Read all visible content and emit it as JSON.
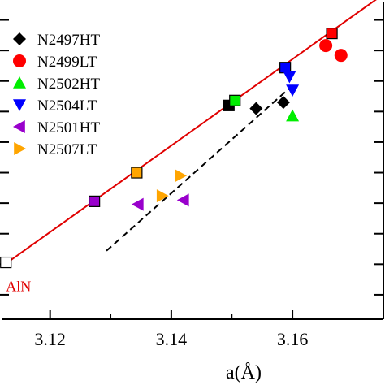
{
  "chart_data": {
    "type": "scatter",
    "xlabel": "a(Å)",
    "ylabel": "",
    "xlim": [
      3.112,
      3.175
    ],
    "ylim": [
      5.026,
      5.078
    ],
    "x_ticks": [
      3.12,
      3.14,
      3.16
    ],
    "x_tick_labels": [
      "3.12",
      "3.14",
      "3.16"
    ],
    "legend_position": "top-left",
    "legend": [
      {
        "label": "N2497HT",
        "marker": "diamond",
        "color": "#000000"
      },
      {
        "label": "N2499LT",
        "marker": "circle",
        "color": "#ff0000"
      },
      {
        "label": "N2502HT",
        "marker": "triangle-up",
        "color": "#00ee00"
      },
      {
        "label": "N2504LT",
        "marker": "triangle-down",
        "color": "#0000ff"
      },
      {
        "label": "N2501HT",
        "marker": "triangle-left",
        "color": "#9900cc"
      },
      {
        "label": "N2507LT",
        "marker": "triangle-right",
        "color": "#ffa500"
      }
    ],
    "series": [
      {
        "name": "N2497HT",
        "marker": "diamond",
        "color": "#000000",
        "points": [
          [
            3.154,
            5.0605
          ],
          [
            3.1585,
            5.0615
          ]
        ]
      },
      {
        "name": "N2499LT",
        "marker": "circle",
        "color": "#ff0000",
        "points": [
          [
            3.1655,
            5.0708
          ],
          [
            3.168,
            5.0692
          ]
        ]
      },
      {
        "name": "N2502HT",
        "marker": "triangle-up",
        "color": "#00ee00",
        "points": [
          [
            3.16,
            5.0593
          ]
        ]
      },
      {
        "name": "N2504LT",
        "marker": "triangle-down",
        "color": "#0000ff",
        "points": [
          [
            3.1595,
            5.0657
          ],
          [
            3.16,
            5.0635
          ]
        ]
      },
      {
        "name": "N2501HT",
        "marker": "triangle-left",
        "color": "#9900cc",
        "points": [
          [
            3.1345,
            5.0448
          ],
          [
            3.142,
            5.0455
          ]
        ]
      },
      {
        "name": "N2507LT",
        "marker": "triangle-right",
        "color": "#ffa500",
        "points": [
          [
            3.1385,
            5.0462
          ],
          [
            3.1415,
            5.0495
          ]
        ]
      }
    ],
    "squares": [
      {
        "x": 3.1127,
        "y": 5.0353,
        "fill": "#ffffff"
      },
      {
        "x": 3.1273,
        "y": 5.0453,
        "fill": "#9900cc"
      },
      {
        "x": 3.1343,
        "y": 5.05,
        "fill": "#ffa500"
      },
      {
        "x": 3.1495,
        "y": 5.061,
        "fill": "#000000"
      },
      {
        "x": 3.1505,
        "y": 5.0618,
        "fill": "#00ee00"
      },
      {
        "x": 3.1588,
        "y": 5.0672,
        "fill": "#0000ff"
      },
      {
        "x": 3.1665,
        "y": 5.0728,
        "fill": "#ff0000"
      }
    ],
    "fit_lines": [
      {
        "style": "solid",
        "color": "#e00000",
        "points": [
          [
            3.112,
            5.0346
          ],
          [
            3.175,
            5.0792
          ]
        ]
      },
      {
        "style": "dashed",
        "color": "#000000",
        "points": [
          [
            3.1293,
            5.0372
          ],
          [
            3.1605,
            5.0647
          ]
        ]
      }
    ],
    "annotations": [
      {
        "text": "AlN",
        "x": 3.1127,
        "y": 5.0322,
        "color": "#e00000"
      }
    ]
  }
}
